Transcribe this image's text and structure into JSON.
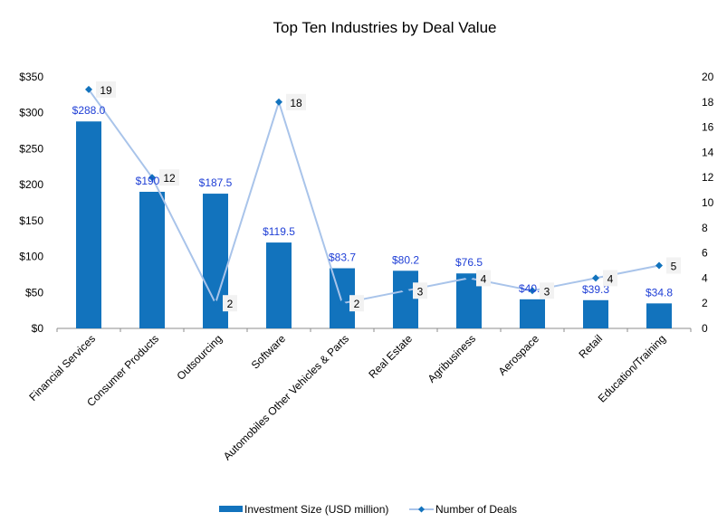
{
  "chart_data": {
    "type": "bar+line",
    "title": "Top Ten Industries by Deal Value",
    "categories": [
      "Financial Services",
      "Consumer Products",
      "Outsourcing",
      "Software",
      "Automobiles Other Vehicles & Parts",
      "Real Estate",
      "Agribusiness",
      "Aerospace",
      "Retail",
      "Education/Training"
    ],
    "series": [
      {
        "name": "Investment Size (USD million)",
        "type": "bar",
        "axis": "left",
        "color": "#1273BD",
        "values": [
          288.0,
          190.1,
          187.5,
          119.5,
          83.7,
          80.2,
          76.5,
          40.5,
          39.3,
          34.8
        ],
        "labels": [
          "$288.0",
          "$190.1",
          "$187.5",
          "$119.5",
          "$83.7",
          "$80.2",
          "$76.5",
          "$40.5",
          "$39.3",
          "$34.8"
        ]
      },
      {
        "name": "Number of Deals",
        "type": "line",
        "axis": "right",
        "color": "#A9C4EA",
        "marker_color": "#1273BD",
        "values": [
          19,
          12,
          2,
          18,
          2,
          3,
          4,
          3,
          4,
          5
        ],
        "labels": [
          "19",
          "12",
          "2",
          "18",
          "2",
          "3",
          "4",
          "3",
          "4",
          "5"
        ]
      }
    ],
    "y_left": {
      "min": 0,
      "max": 350,
      "step": 50,
      "tick_labels": [
        "$0",
        "$50",
        "$100",
        "$150",
        "$200",
        "$250",
        "$300",
        "$350"
      ]
    },
    "y_right": {
      "min": 0,
      "max": 20,
      "step": 2,
      "tick_labels": [
        "0",
        "2",
        "4",
        "6",
        "8",
        "10",
        "12",
        "14",
        "16",
        "18",
        "20"
      ]
    },
    "xlabel": "",
    "ylabel": "",
    "grid": false,
    "legend": "bottom",
    "legend_entries": [
      "Investment Size (USD million)",
      "Number of Deals"
    ]
  }
}
